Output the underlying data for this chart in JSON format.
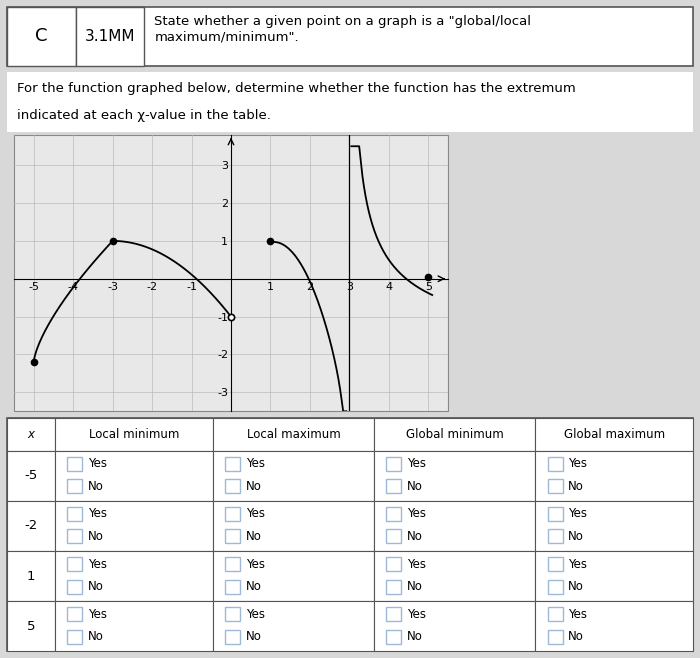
{
  "header_c": "C",
  "header_mm": "3.1MM",
  "header_desc": "State whether a given point on a graph is a \"global/local\nmaximum/minimum\".",
  "problem_text_line1": "For the function graphed below, determine whether the function has the extremum",
  "problem_text_line2": "indicated at each χ-value in the table.",
  "graph": {
    "xlim": [
      -5.5,
      5.5
    ],
    "ylim": [
      -3.5,
      3.8
    ],
    "xticks": [
      -5,
      -4,
      -3,
      -2,
      -1,
      0,
      1,
      2,
      3,
      4,
      5
    ],
    "yticks": [
      -3,
      -2,
      -1,
      0,
      1,
      2,
      3
    ],
    "bg_color": "#e8e8e8"
  },
  "table_rows": [
    "-5",
    "-2",
    "1",
    "5"
  ],
  "table_cols": [
    "x",
    "Local minimum",
    "Local maximum",
    "Global minimum",
    "Global maximum"
  ],
  "checkbox_color": "#a0b8d8",
  "bg_color": "#ffffff"
}
